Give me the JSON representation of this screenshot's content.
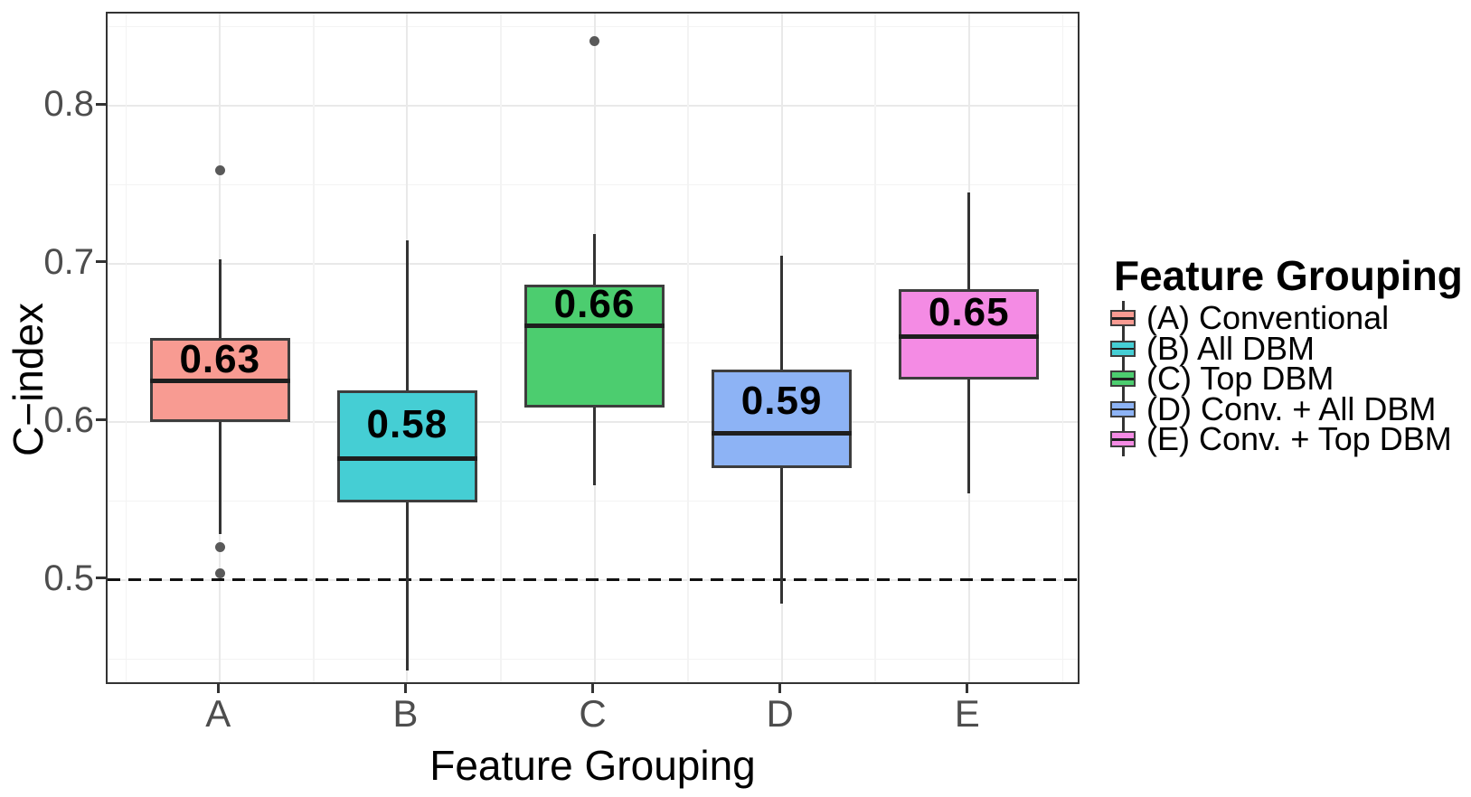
{
  "chart_data": {
    "type": "boxplot",
    "title": "",
    "xlabel": "Feature Grouping",
    "ylabel": "C−index",
    "ylim": [
      0.4331,
      0.8583
    ],
    "y_ticks": [
      {
        "label": "0.8",
        "value": 0.8
      },
      {
        "label": "0.7",
        "value": 0.7
      },
      {
        "label": "0.6",
        "value": 0.6
      },
      {
        "label": "0.5",
        "value": 0.5
      }
    ],
    "y_minor_gridlines": [
      0.45,
      0.55,
      0.65,
      0.75,
      0.85
    ],
    "reference_line": {
      "value": 0.5,
      "style": "dashed",
      "color": "#111111"
    },
    "categories": [
      "A",
      "B",
      "C",
      "D",
      "E"
    ],
    "groups": [
      {
        "category": "A",
        "legend_label": "(A) Conventional",
        "fill": "#F89B92",
        "median_label": "0.63",
        "lower_whisker": 0.529,
        "q1": 0.6,
        "median": 0.626,
        "q3": 0.653,
        "upper_whisker": 0.703,
        "outliers": [
          0.759,
          0.521,
          0.504
        ]
      },
      {
        "category": "B",
        "legend_label": "(B) All DBM",
        "fill": "#45CED4",
        "median_label": "0.58",
        "lower_whisker": 0.443,
        "q1": 0.549,
        "median": 0.577,
        "q3": 0.62,
        "upper_whisker": 0.715,
        "outliers": []
      },
      {
        "category": "C",
        "legend_label": "(C) Top DBM",
        "fill": "#4CCD6F",
        "median_label": "0.66",
        "lower_whisker": 0.56,
        "q1": 0.609,
        "median": 0.661,
        "q3": 0.687,
        "upper_whisker": 0.719,
        "outliers": [
          0.841
        ]
      },
      {
        "category": "D",
        "legend_label": "(D) Conv. + All DBM",
        "fill": "#8DB3F5",
        "median_label": "0.59",
        "lower_whisker": 0.485,
        "q1": 0.571,
        "median": 0.593,
        "q3": 0.633,
        "upper_whisker": 0.705,
        "outliers": []
      },
      {
        "category": "E",
        "legend_label": "(E) Conv. + Top DBM",
        "fill": "#F48BE4",
        "median_label": "0.65",
        "lower_whisker": 0.555,
        "q1": 0.627,
        "median": 0.654,
        "q3": 0.684,
        "upper_whisker": 0.745,
        "outliers": []
      }
    ],
    "legend": {
      "title": "Feature Grouping",
      "position": "right"
    },
    "style": {
      "box_border": "#3D3D3D",
      "median_color": "#1E1E1E",
      "whisker_color": "#333333",
      "outlier_color": "#595959",
      "grid_major": "#E9E9E9",
      "grid_minor": "#F3F3F3",
      "panel_border": "#333333",
      "tick_label_color": "#4D4D4D",
      "axis_title_color": "#000000"
    }
  }
}
